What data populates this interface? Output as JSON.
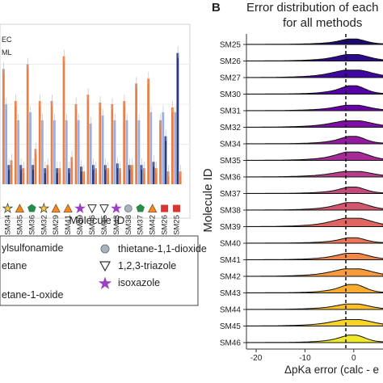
{
  "panel_a": {
    "legend_fragments": [
      "EC",
      "ML"
    ],
    "xlabel": "Molecule ID",
    "group_legend": [
      {
        "label": "ylsulfonamide",
        "marker": "none"
      },
      {
        "label": "thietane-1,1-dioxide",
        "marker": "circle-gray"
      },
      {
        "label": "etane",
        "marker": "none"
      },
      {
        "label": "1,2,3-triazole",
        "marker": "triangle-down-open"
      },
      {
        "label": "etane-1-oxide",
        "marker": "none"
      },
      {
        "label": "isoxazole",
        "marker": "star-purple"
      }
    ],
    "chart_data": {
      "type": "bar",
      "categories": [
        "SM34",
        "SM35",
        "SM36",
        "SM32",
        "SM29",
        "SM41",
        "SM39",
        "SM46",
        "SM45",
        "SM43",
        "SM38",
        "SM37",
        "SM42",
        "SM26",
        "SM25"
      ],
      "markers": [
        "star-yellow",
        "triangle-orange",
        "pentagon-green",
        "star-yellow",
        "triangle-orange",
        "triangle-orange",
        "star-purple",
        "triangle-down-open",
        "triangle-down-open",
        "star-purple",
        "circle-gray",
        "pentagon-green",
        "triangle-orange",
        "square-red",
        "square-red"
      ],
      "series": [
        {
          "color": "#e8804a",
          "values": [
            0.72,
            0.52,
            0.75,
            0.52,
            0.52,
            0.8,
            0.5,
            0.56,
            0.51,
            0.5,
            0.52,
            0.63,
            0.66,
            0.4,
            0.48
          ]
        },
        {
          "color": "#9aaee0",
          "values": [
            0.5,
            0.4,
            0.45,
            0.4,
            0.4,
            0.4,
            0.4,
            0.38,
            0.43,
            0.4,
            0.4,
            0.4,
            0.45,
            0.45,
            0.45
          ]
        },
        {
          "color": "#2a3a7e",
          "values": [
            0.12,
            0.12,
            0.12,
            0.1,
            0.1,
            0.1,
            0.11,
            0.12,
            0.12,
            0.13,
            0.12,
            0.12,
            0.14,
            0.3,
            0.82
          ]
        },
        {
          "color": "#e8804a",
          "values": [
            0.15,
            0.1,
            0.22,
            0.12,
            0.1,
            0.17,
            0.08,
            0.1,
            0.1,
            0.1,
            0.12,
            0.1,
            0.1,
            0.08,
            0.08
          ]
        }
      ]
    }
  },
  "panel_b": {
    "panel_label": "B",
    "title_line1": "Error distribution of each",
    "title_line2": "for all methods",
    "ylabel": "Molecule ID",
    "xlabel": "ΔpKa error (calc - e",
    "chart_data": {
      "type": "ridgeline",
      "categories": [
        "SM25",
        "SM26",
        "SM27",
        "SM30",
        "SM31",
        "SM32",
        "SM34",
        "SM35",
        "SM36",
        "SM37",
        "SM38",
        "SM39",
        "SM40",
        "SM41",
        "SM42",
        "SM43",
        "SM44",
        "SM45",
        "SM46"
      ],
      "x_ticks": [
        -20,
        -10,
        0
      ],
      "xlim": [
        -22,
        6
      ],
      "colors": [
        "#1e0a6e",
        "#2d0a8c",
        "#3f06a2",
        "#5302a6",
        "#6a00a8",
        "#7f0ea6",
        "#9319a0",
        "#a62b97",
        "#b73d8b",
        "#c6497d",
        "#d3576f",
        "#df6563",
        "#ea7556",
        "#f28749",
        "#f79a3b",
        "#fbac2f",
        "#fcc026",
        "#f9d424",
        "#f0e92a"
      ]
    }
  }
}
